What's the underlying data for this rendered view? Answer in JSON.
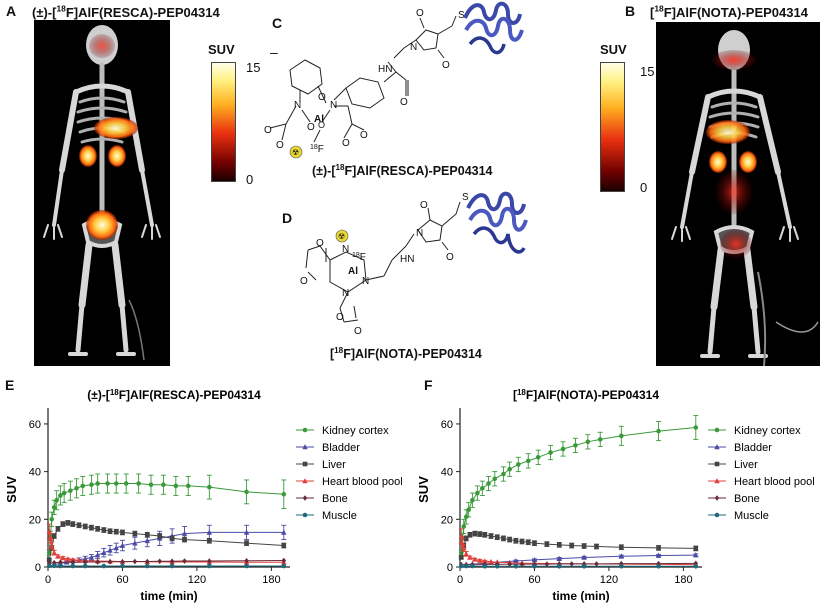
{
  "panels": {
    "a": {
      "letter": "A",
      "title": "(±)-[18F]AlF(RESCA)-PEP04314"
    },
    "b": {
      "letter": "B",
      "title": "[18F]AlF(NOTA)-PEP04314"
    },
    "c": {
      "letter": "C",
      "caption": "(±)-[18F]AlF(RESCA)-PEP04314",
      "minus": "–"
    },
    "d": {
      "letter": "D",
      "caption": "[18F]AlF(NOTA)-PEP04314"
    },
    "e": {
      "letter": "E"
    },
    "f": {
      "letter": "F"
    }
  },
  "colorbar": {
    "label": "SUV",
    "max": "15",
    "min": "0"
  },
  "colors": {
    "kidney_cortex": "#3a9a3a",
    "bladder": "#4a4aa6",
    "liver": "#444444",
    "heart_blood_pool": "#e0403a",
    "bone": "#6a2a3a",
    "muscle": "#1f6a7a",
    "molecule": "#4050b0",
    "radiation": "#e8d830"
  },
  "chemistry": {
    "resca_atoms": [
      "N",
      "N",
      "O",
      "O",
      "Al",
      "O",
      "O",
      "O",
      "O",
      "O",
      "18F",
      "HN",
      "N",
      "O",
      "O",
      "S"
    ],
    "nota_atoms": [
      "N",
      "N",
      "N",
      "Al",
      "18F",
      "O",
      "O",
      "O",
      "O",
      "HN",
      "N",
      "O",
      "O",
      "S"
    ]
  },
  "chart_data": [
    {
      "type": "line",
      "title": "(±)-[18F]AlF(RESCA)-PEP04314",
      "xlabel": "time (min)",
      "ylabel": "SUV",
      "xlim": [
        0,
        195
      ],
      "ylim": [
        0,
        65
      ],
      "xticks": [
        "0",
        "60",
        "120",
        "180"
      ],
      "yticks": [
        "0",
        "20",
        "40",
        "60"
      ],
      "legend_position": "right",
      "series": [
        {
          "name": "Kidney cortex",
          "color": "#3a9a3a",
          "marker": "circle",
          "x": [
            1,
            2,
            3,
            5,
            7,
            10,
            13,
            18,
            23,
            28,
            35,
            40,
            48,
            55,
            63,
            73,
            83,
            93,
            103,
            113,
            130,
            160,
            190
          ],
          "y": [
            6,
            13,
            20,
            25,
            28,
            30,
            31,
            32,
            33,
            34,
            34.5,
            35,
            35,
            35,
            35,
            35,
            34.5,
            34.5,
            34,
            34,
            33.5,
            31.5,
            30.5
          ],
          "err": [
            1,
            2,
            3,
            3,
            4,
            4,
            4,
            4,
            4,
            4,
            4,
            4,
            4,
            4,
            4,
            4,
            4,
            4,
            4,
            4,
            5,
            5,
            6
          ]
        },
        {
          "name": "Bladder",
          "color": "#4a4aa6",
          "marker": "triangle",
          "x": [
            5,
            10,
            15,
            20,
            25,
            30,
            35,
            40,
            45,
            50,
            55,
            60,
            70,
            80,
            90,
            100,
            110,
            130,
            160,
            190
          ],
          "y": [
            1,
            1.5,
            2,
            2.5,
            3,
            3.5,
            4,
            5,
            6,
            7,
            8,
            9,
            10,
            11,
            12,
            13,
            14,
            14.5,
            14.5,
            14.5
          ],
          "err": [
            0.2,
            0.3,
            0.5,
            0.6,
            0.8,
            1,
            1.2,
            1.5,
            1.8,
            2,
            2,
            2.2,
            2.5,
            2.5,
            3,
            3,
            3,
            3,
            3,
            3
          ]
        },
        {
          "name": "Liver",
          "color": "#444444",
          "marker": "square",
          "x": [
            1,
            3,
            5,
            8,
            12,
            16,
            20,
            25,
            30,
            35,
            40,
            45,
            50,
            55,
            60,
            70,
            80,
            90,
            100,
            110,
            130,
            160,
            190
          ],
          "y": [
            3,
            8,
            13,
            16,
            18,
            18.5,
            18,
            17.5,
            17,
            16.5,
            16,
            15.5,
            15,
            14.8,
            14.5,
            14,
            13.5,
            13,
            12,
            11.5,
            11,
            10,
            9
          ],
          "err": [
            0.5,
            1,
            1,
            1,
            1,
            1,
            1,
            1,
            1,
            1,
            1,
            1,
            1,
            1,
            1,
            1,
            1,
            1,
            1,
            1,
            1,
            1,
            1
          ]
        },
        {
          "name": "Heart blood pool",
          "color": "#e0403a",
          "marker": "triangle",
          "x": [
            1,
            2,
            3,
            5,
            8,
            12,
            16,
            20,
            25,
            30,
            40,
            50,
            60,
            80,
            100,
            130,
            160,
            190
          ],
          "y": [
            15,
            12,
            9,
            6,
            4.5,
            3.8,
            3.3,
            3,
            2.8,
            2.6,
            2.5,
            2.4,
            2.3,
            2.2,
            2.1,
            2.1,
            2,
            2
          ],
          "err": [
            3,
            2,
            1.5,
            1,
            0.6,
            0.5,
            0.4,
            0.4,
            0.3,
            0.3,
            0.3,
            0.3,
            0.3,
            0.3,
            0.3,
            0.3,
            0.3,
            0.3
          ]
        },
        {
          "name": "Bone",
          "color": "#6a2a3a",
          "marker": "diamond",
          "x": [
            1,
            5,
            10,
            20,
            30,
            40,
            50,
            60,
            70,
            80,
            90,
            100,
            110,
            130,
            160,
            190
          ],
          "y": [
            1.5,
            1.8,
            2,
            2,
            2.1,
            2.1,
            2.2,
            2.2,
            2.3,
            2.3,
            2.4,
            2.4,
            2.5,
            2.5,
            2.6,
            2.7
          ],
          "err": [
            0.2,
            0.2,
            0.2,
            0.2,
            0.2,
            0.2,
            0.2,
            0.2,
            0.2,
            0.2,
            0.2,
            0.2,
            0.2,
            0.2,
            0.2,
            0.2
          ]
        },
        {
          "name": "Muscle",
          "color": "#1f6a7a",
          "marker": "circle",
          "x": [
            1,
            5,
            10,
            20,
            30,
            45,
            60,
            80,
            100,
            130,
            160,
            190
          ],
          "y": [
            0.5,
            0.5,
            0.4,
            0.4,
            0.4,
            0.4,
            0.4,
            0.4,
            0.4,
            0.4,
            0.4,
            0.4
          ],
          "err": [
            0.1,
            0.1,
            0.1,
            0.1,
            0.1,
            0.1,
            0.1,
            0.1,
            0.1,
            0.1,
            0.1,
            0.1
          ]
        }
      ]
    },
    {
      "type": "line",
      "title": "[18F]AlF(NOTA)-PEP04314",
      "xlabel": "time (min)",
      "ylabel": "SUV",
      "xlim": [
        0,
        195
      ],
      "ylim": [
        0,
        65
      ],
      "xticks": [
        "0",
        "60",
        "120",
        "180"
      ],
      "yticks": [
        "0",
        "20",
        "40",
        "60"
      ],
      "legend_position": "right",
      "series": [
        {
          "name": "Kidney cortex",
          "color": "#3a9a3a",
          "marker": "circle",
          "x": [
            1,
            2,
            3,
            5,
            7,
            10,
            14,
            18,
            23,
            28,
            35,
            40,
            47,
            55,
            63,
            73,
            83,
            93,
            103,
            113,
            130,
            160,
            190
          ],
          "y": [
            6,
            12,
            17,
            21,
            24,
            28,
            31,
            33,
            35,
            37,
            39,
            41,
            43,
            44.5,
            46,
            48,
            49.5,
            51,
            52.5,
            53.5,
            55,
            57,
            58.5
          ],
          "err": [
            1,
            2,
            3,
            3,
            3,
            3,
            3,
            3,
            3,
            3,
            3,
            3,
            3,
            3,
            3,
            3,
            3,
            3,
            3,
            3,
            4,
            4,
            5
          ]
        },
        {
          "name": "Bladder",
          "color": "#4a4aa6",
          "marker": "triangle",
          "x": [
            5,
            10,
            20,
            30,
            45,
            60,
            80,
            100,
            130,
            160,
            190
          ],
          "y": [
            1,
            1.2,
            1.5,
            2,
            2.5,
            3,
            3.5,
            4,
            4.5,
            4.8,
            5
          ],
          "err": [
            0.2,
            0.2,
            0.3,
            0.3,
            0.4,
            0.4,
            0.5,
            0.5,
            0.5,
            0.5,
            0.5
          ]
        },
        {
          "name": "Liver",
          "color": "#444444",
          "marker": "square",
          "x": [
            1,
            3,
            5,
            8,
            12,
            16,
            20,
            25,
            30,
            35,
            40,
            45,
            50,
            55,
            60,
            70,
            80,
            90,
            100,
            110,
            130,
            160,
            190
          ],
          "y": [
            4,
            9,
            12,
            13.5,
            14,
            13.8,
            13.5,
            13,
            12.5,
            12,
            11.5,
            11,
            10.7,
            10.4,
            10,
            9.6,
            9.3,
            9,
            8.8,
            8.6,
            8.3,
            8,
            7.8
          ],
          "err": [
            0.5,
            1,
            1,
            1,
            1,
            1,
            1,
            1,
            1,
            1,
            1,
            1,
            1,
            1,
            1,
            1,
            1,
            1,
            1,
            1,
            1,
            1,
            1
          ]
        },
        {
          "name": "Heart blood pool",
          "color": "#e0403a",
          "marker": "triangle",
          "x": [
            1,
            2,
            3,
            5,
            8,
            12,
            16,
            20,
            25,
            30,
            40,
            50,
            60,
            80,
            100,
            130,
            160,
            190
          ],
          "y": [
            13,
            10,
            8,
            5.5,
            4,
            3.2,
            2.7,
            2.4,
            2.2,
            2,
            1.8,
            1.6,
            1.5,
            1.4,
            1.3,
            1.2,
            1.1,
            1
          ],
          "err": [
            3,
            2,
            1.5,
            1,
            0.6,
            0.5,
            0.4,
            0.4,
            0.3,
            0.3,
            0.3,
            0.3,
            0.3,
            0.3,
            0.3,
            0.3,
            0.3,
            0.3
          ]
        },
        {
          "name": "Bone",
          "color": "#6a2a3a",
          "marker": "diamond",
          "x": [
            1,
            5,
            10,
            20,
            30,
            40,
            50,
            60,
            70,
            80,
            90,
            100,
            110,
            130,
            160,
            190
          ],
          "y": [
            1,
            1,
            1.1,
            1.1,
            1.1,
            1.2,
            1.2,
            1.2,
            1.2,
            1.3,
            1.3,
            1.3,
            1.3,
            1.4,
            1.4,
            1.5
          ],
          "err": [
            0.2,
            0.2,
            0.2,
            0.2,
            0.2,
            0.2,
            0.2,
            0.2,
            0.2,
            0.2,
            0.2,
            0.2,
            0.2,
            0.2,
            0.2,
            0.2
          ]
        },
        {
          "name": "Muscle",
          "color": "#1f6a7a",
          "marker": "circle",
          "x": [
            1,
            5,
            10,
            20,
            30,
            45,
            60,
            80,
            100,
            130,
            160,
            190
          ],
          "y": [
            0.4,
            0.4,
            0.4,
            0.3,
            0.3,
            0.3,
            0.3,
            0.3,
            0.3,
            0.3,
            0.3,
            0.3
          ],
          "err": [
            0.1,
            0.1,
            0.1,
            0.1,
            0.1,
            0.1,
            0.1,
            0.1,
            0.1,
            0.1,
            0.1,
            0.1
          ]
        }
      ]
    }
  ]
}
